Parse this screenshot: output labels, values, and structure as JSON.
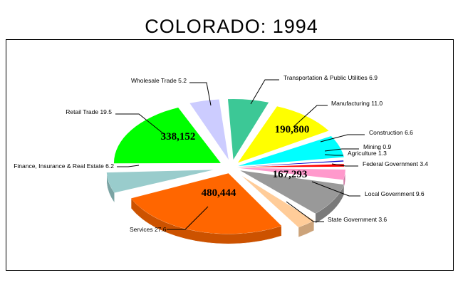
{
  "chart_data": {
    "type": "pie",
    "title": "COLORADO:  1994",
    "slices": [
      {
        "name": "Transportation & Public Utilities",
        "percent": "6.9",
        "color": "#3cc896"
      },
      {
        "name": "Manufacturing",
        "percent": "11.0",
        "color": "#ffff00",
        "value_label": "190,800"
      },
      {
        "name": "Construction",
        "percent": "6.6",
        "color": "#00ffff"
      },
      {
        "name": "Mining",
        "percent": "0.9",
        "color": "#0000cc"
      },
      {
        "name": "Agriculture",
        "percent": "1.3",
        "color": "#ff0000"
      },
      {
        "name": "Federal Government",
        "percent": "3.4",
        "color": "#ff99cc"
      },
      {
        "name": "Local Government",
        "percent": "9.6",
        "color": "#999999",
        "value_label": "167,293"
      },
      {
        "name": "State Government",
        "percent": "3.6",
        "color": "#ffcc99"
      },
      {
        "name": "Services",
        "percent": "27.6",
        "color": "#ff6600",
        "value_label": "480,444"
      },
      {
        "name": "Finance, Insurance & Real Estate",
        "percent": "6.2",
        "color": "#99cccc"
      },
      {
        "name": "Retail Trade",
        "percent": "19.5",
        "color": "#00ff00",
        "value_label": "338,152"
      },
      {
        "name": "Wholesale Trade",
        "percent": "5.2",
        "color": "#ccccff"
      }
    ]
  }
}
